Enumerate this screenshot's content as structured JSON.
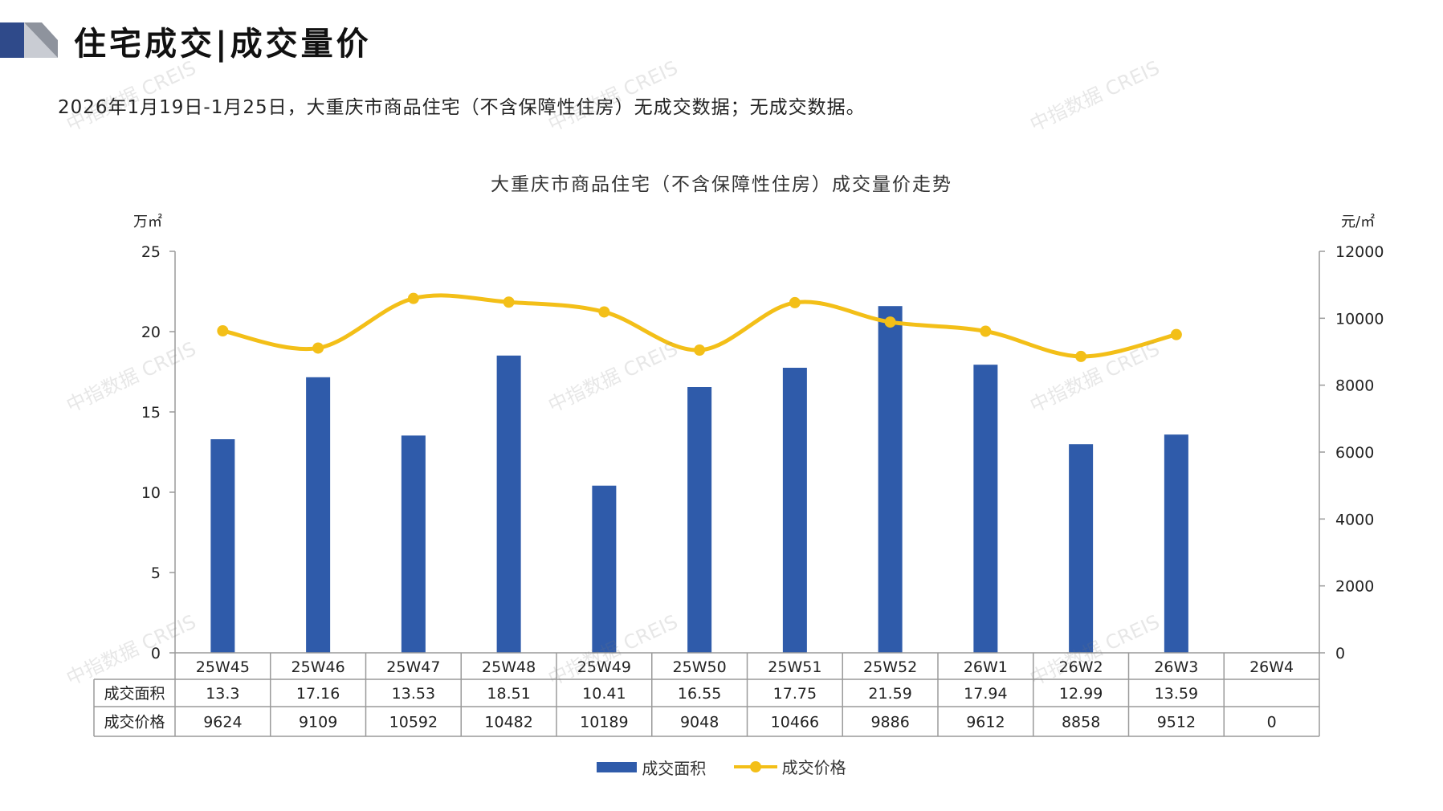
{
  "header": {
    "title": "住宅成交|成交量价",
    "subtitle": "2026年1月19日-1月25日，大重庆市商品住宅（不含保障性住房）无成交数据；无成交数据。"
  },
  "watermark": "中指数据 CREIS",
  "colors": {
    "bar": "#2F5BAA",
    "line": "#F3BF18",
    "logo_dark": "#2F4A8A",
    "logo_light": "#B8BCC6"
  },
  "chart_data": {
    "type": "bar",
    "title": "大重庆市商品住宅（不含保障性住房）成交量价走势",
    "y_left_label": "万㎡",
    "y_right_label": "元/㎡",
    "y_left_range": [
      0,
      25
    ],
    "y_left_ticks": [
      0,
      5,
      10,
      15,
      20,
      25
    ],
    "y_right_range": [
      0,
      12000
    ],
    "y_right_ticks": [
      0,
      2000,
      4000,
      6000,
      8000,
      10000,
      12000
    ],
    "categories": [
      "25W45",
      "25W46",
      "25W47",
      "25W48",
      "25W49",
      "25W50",
      "25W51",
      "25W52",
      "26W1",
      "26W2",
      "26W3",
      "26W4"
    ],
    "series": [
      {
        "name": "成交面积",
        "type": "bar",
        "axis": "left",
        "values": [
          13.3,
          17.16,
          13.53,
          18.51,
          10.41,
          16.55,
          17.75,
          21.59,
          17.94,
          12.99,
          13.59,
          null
        ]
      },
      {
        "name": "成交价格",
        "type": "line",
        "axis": "right",
        "values": [
          9624,
          9109,
          10592,
          10482,
          10189,
          9048,
          10466,
          9886,
          9612,
          8858,
          9512,
          0
        ]
      }
    ],
    "table": {
      "row_labels": [
        "成交面积",
        "成交价格"
      ],
      "rows": [
        [
          "13.3",
          "17.16",
          "13.53",
          "18.51",
          "10.41",
          "16.55",
          "17.75",
          "21.59",
          "17.94",
          "12.99",
          "13.59",
          ""
        ],
        [
          "9624",
          "9109",
          "10592",
          "10482",
          "10189",
          "9048",
          "10466",
          "9886",
          "9612",
          "8858",
          "9512",
          "0"
        ]
      ]
    },
    "legend": [
      "成交面积",
      "成交价格"
    ],
    "legend_position": "bottom"
  }
}
